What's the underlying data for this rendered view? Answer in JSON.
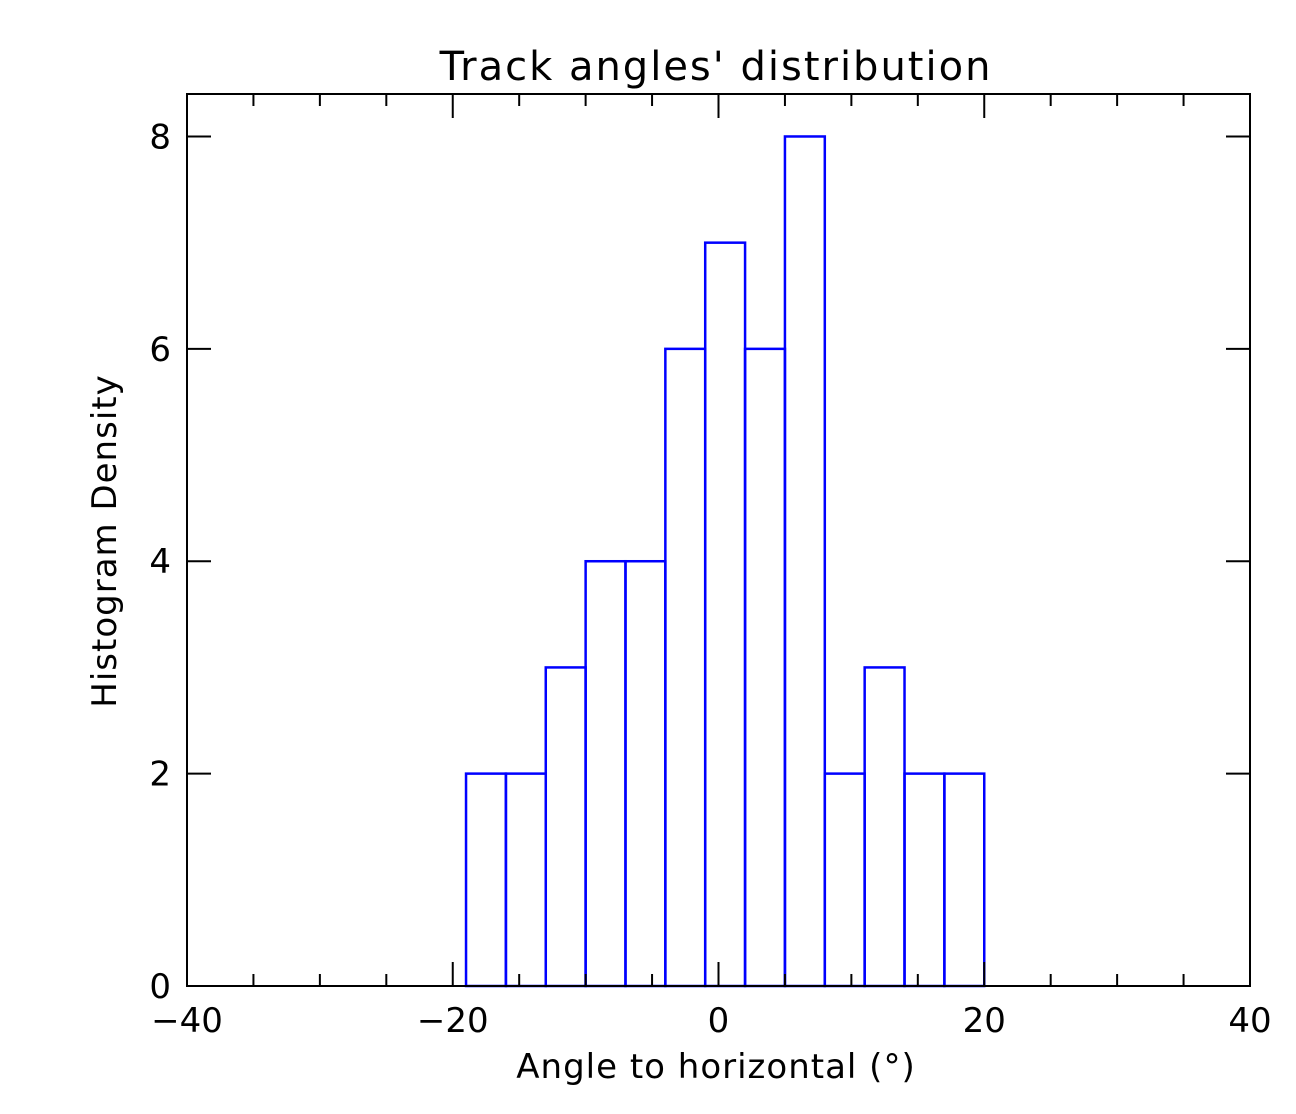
{
  "chart_data": {
    "type": "bar",
    "title": "Track angles' distribution",
    "xlabel": "Angle to horizontal (°)",
    "ylabel": "Histogram Density",
    "xlim": [
      -40,
      40
    ],
    "ylim": [
      0,
      8.4
    ],
    "x_ticks": [
      -40,
      -20,
      0,
      20,
      40
    ],
    "x_tick_labels": [
      "−40",
      "−20",
      "0",
      "20",
      "40"
    ],
    "y_ticks": [
      0,
      2,
      4,
      6,
      8
    ],
    "y_tick_labels": [
      "0",
      "2",
      "4",
      "6",
      "8"
    ],
    "x_minor_step": 5,
    "grid": false,
    "legend": "none",
    "bar_color": "#0000ff",
    "bins": [
      {
        "x0": -19,
        "x1": -16,
        "value": 2
      },
      {
        "x0": -16,
        "x1": -13,
        "value": 2
      },
      {
        "x0": -13,
        "x1": -10,
        "value": 3
      },
      {
        "x0": -10,
        "x1": -7,
        "value": 4
      },
      {
        "x0": -7,
        "x1": -4,
        "value": 4
      },
      {
        "x0": -4,
        "x1": -1,
        "value": 6
      },
      {
        "x0": -1,
        "x1": 2,
        "value": 7
      },
      {
        "x0": 2,
        "x1": 5,
        "value": 6
      },
      {
        "x0": 5,
        "x1": 8,
        "value": 8
      },
      {
        "x0": 8,
        "x1": 11,
        "value": 2
      },
      {
        "x0": 11,
        "x1": 14,
        "value": 3
      },
      {
        "x0": 14,
        "x1": 17,
        "value": 2
      },
      {
        "x0": 17,
        "x1": 20,
        "value": 2
      }
    ]
  }
}
